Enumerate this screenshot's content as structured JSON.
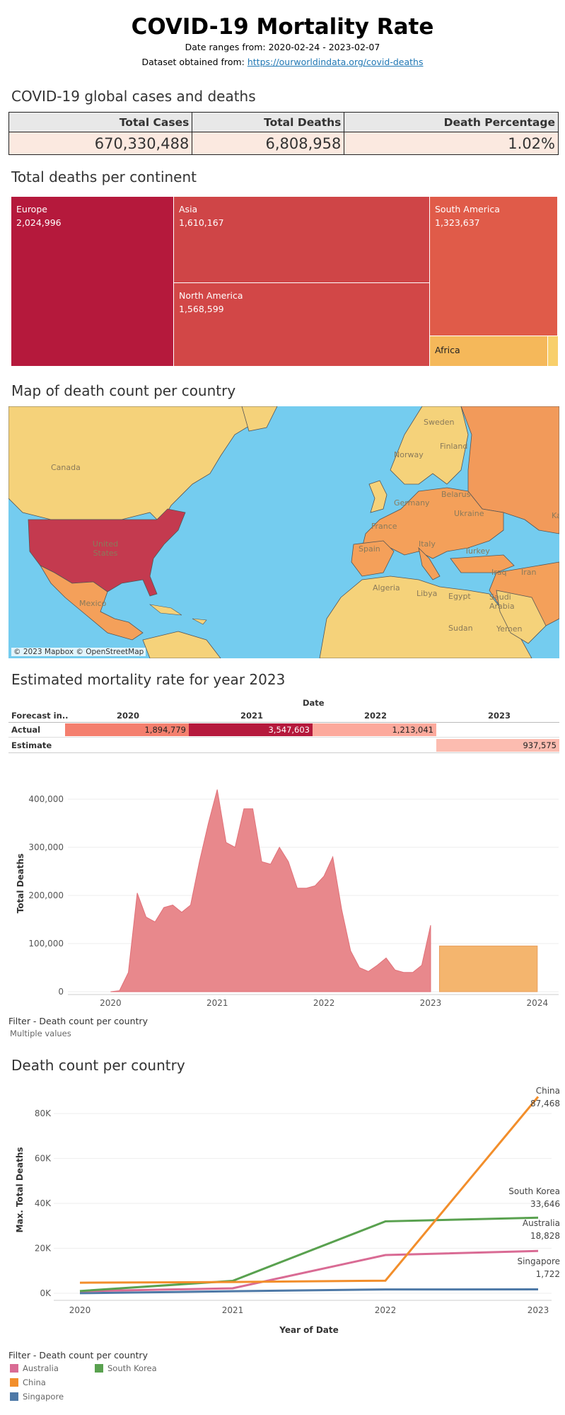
{
  "header": {
    "title": "COVID-19 Mortality Rate",
    "date_range": "Date ranges from: 2020-02-24 - 2023-02-07",
    "dataset_prefix": "Dataset obtained from: ",
    "dataset_link": "https://ourworldindata.org/covid-deaths"
  },
  "sections": {
    "global": "COVID-19 global cases and deaths",
    "continent": "Total deaths per continent",
    "map": "Map of death count per country",
    "estimate": "Estimated mortality rate for year 2023",
    "country": "Death count per country"
  },
  "kpi": {
    "headers": [
      "Total Cases",
      "Total Deaths",
      "Death Percentage"
    ],
    "values": [
      "670,330,488",
      "6,808,958",
      "1.02%"
    ]
  },
  "colors": {
    "europe": "#b5193c",
    "asia": "#cf4547",
    "north_america": "#d24747",
    "south_america": "#e05b49",
    "africa": "#f5b85a",
    "oceania": "#f8cf6b",
    "area": "#e8888c",
    "forecast": "#f4b56e",
    "australia": "#d96b94",
    "china": "#f28e2b",
    "singapore": "#4e79a7",
    "south_korea": "#59a14f",
    "land": "#f5d27a",
    "usa": "#c43a4f",
    "mexico": "#f4a05a",
    "russia": "#f29a5a",
    "sea": "#74ccef"
  },
  "chart_data": [
    {
      "type": "treemap",
      "title": "Total deaths per continent",
      "categories": [
        "Europe",
        "Asia",
        "North America",
        "South America",
        "Africa",
        ""
      ],
      "values": [
        2024996,
        1610167,
        1568599,
        1323637,
        null,
        null
      ],
      "value_labels": [
        "2,024,996",
        "1,610,167",
        "1,568,599",
        "1,323,637",
        "",
        ""
      ]
    },
    {
      "type": "map",
      "title": "Map of death count per country",
      "labels": [
        "Canada",
        "United States",
        "Mexico",
        "Sweden",
        "Finland",
        "Norway",
        "Germany",
        "Belarus",
        "Ukraine",
        "France",
        "Spain",
        "Italy",
        "Turkey",
        "Iraq",
        "Iran",
        "Algeria",
        "Libya",
        "Egypt",
        "Saudi Arabia",
        "Sudan",
        "Yemen",
        "Ka"
      ],
      "attribution": "© 2023 Mapbox © OpenStreetMap"
    },
    {
      "type": "table",
      "title": "Estimated mortality rate for year 2023",
      "column_group": "Date",
      "row_header": "Forecast in..",
      "columns": [
        "2020",
        "2021",
        "2022",
        "2023"
      ],
      "rows": [
        {
          "label": "Actual",
          "values": [
            "1,894,779",
            "3,547,603",
            "1,213,041",
            ""
          ]
        },
        {
          "label": "Estimate",
          "values": [
            "",
            "",
            "",
            "937,575"
          ]
        }
      ],
      "cell_colors": [
        [
          "#f47f6e",
          "#b5193c",
          "#fca99c",
          null
        ],
        [
          null,
          null,
          null,
          "#fcbcb0"
        ]
      ]
    },
    {
      "type": "area",
      "ylabel": "Total Deaths",
      "ylim": [
        0,
        450000
      ],
      "y_ticks": [
        0,
        100000,
        200000,
        300000,
        400000
      ],
      "y_tick_labels": [
        "0",
        "100,000",
        "200,000",
        "300,000",
        "400,000"
      ],
      "x_ticks": [
        2020,
        2021,
        2022,
        2023,
        2024
      ],
      "x": [
        2020.0,
        2020.083,
        2020.167,
        2020.25,
        2020.333,
        2020.417,
        2020.5,
        2020.583,
        2020.667,
        2020.75,
        2020.833,
        2020.917,
        2021.0,
        2021.083,
        2021.167,
        2021.25,
        2021.333,
        2021.417,
        2021.5,
        2021.583,
        2021.667,
        2021.75,
        2021.833,
        2021.917,
        2022.0,
        2022.083,
        2022.167,
        2022.25,
        2022.333,
        2022.417,
        2022.5,
        2022.583,
        2022.667,
        2022.75,
        2022.833,
        2022.917,
        2023.0
      ],
      "values": [
        0,
        2000,
        40000,
        205000,
        155000,
        145000,
        175000,
        180000,
        165000,
        180000,
        270000,
        350000,
        420000,
        310000,
        300000,
        380000,
        380000,
        270000,
        265000,
        300000,
        270000,
        215000,
        215000,
        220000,
        240000,
        280000,
        170000,
        85000,
        50000,
        42000,
        55000,
        70000,
        45000,
        40000,
        40000,
        55000,
        138000
      ],
      "forecast": {
        "x_start": 2023.083,
        "x_end": 2024.0,
        "value": 95000
      }
    },
    {
      "type": "line",
      "title": "Death count per country",
      "ylabel": "Max. Total Deaths",
      "xlabel": "Year of Date",
      "categories": [
        "2020",
        "2021",
        "2022",
        "2023"
      ],
      "ylim": [
        0,
        92000
      ],
      "y_ticks": [
        0,
        20000,
        40000,
        60000,
        80000
      ],
      "y_tick_labels": [
        "0K",
        "20K",
        "40K",
        "60K",
        "80K"
      ],
      "series": [
        {
          "name": "China",
          "values": [
            4700,
            5000,
            5600,
            87468
          ],
          "end_label": "87,468"
        },
        {
          "name": "South Korea",
          "values": [
            1000,
            5500,
            32000,
            33646
          ],
          "end_label": "33,646"
        },
        {
          "name": "Australia",
          "values": [
            900,
            2200,
            17000,
            18828
          ],
          "end_label": "18,828"
        },
        {
          "name": "Singapore",
          "values": [
            30,
            900,
            1700,
            1722
          ],
          "end_label": "1,722"
        }
      ]
    }
  ],
  "filters": {
    "label": "Filter - Death count per country",
    "value": "Multiple values",
    "legend": [
      "Australia",
      "South Korea",
      "China",
      "Singapore"
    ]
  }
}
